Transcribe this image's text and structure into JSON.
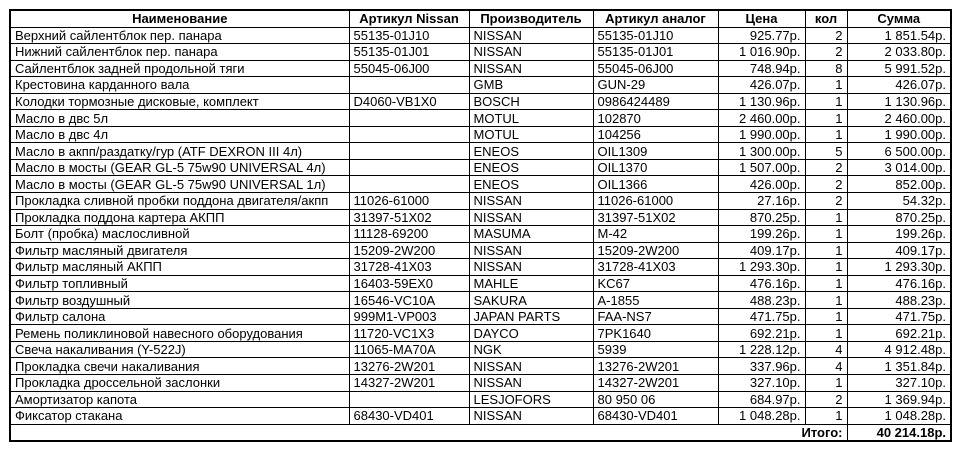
{
  "table": {
    "columns": [
      {
        "label": "Наименование"
      },
      {
        "label": "Артикул Nissan"
      },
      {
        "label": "Производитель"
      },
      {
        "label": "Артикул аналог"
      },
      {
        "label": "Цена"
      },
      {
        "label": "кол"
      },
      {
        "label": "Сумма"
      }
    ],
    "rows": [
      [
        "Верхний сайлентблок пер. панара",
        "55135-01J10",
        "NISSAN",
        "55135-01J10",
        "925.77р.",
        "2",
        "1 851.54р."
      ],
      [
        "Нижний сайлентблок пер. панара",
        "55135-01J01",
        "NISSAN",
        "55135-01J01",
        "1 016.90р.",
        "2",
        "2 033.80р."
      ],
      [
        "Сайлентблок задней продольной тяги",
        "55045-06J00",
        "NISSAN",
        "55045-06J00",
        "748.94р.",
        "8",
        "5 991.52р."
      ],
      [
        "Крестовина карданного вала",
        "",
        "GMB",
        "GUN-29",
        "426.07р.",
        "1",
        "426.07р."
      ],
      [
        "Колодки тормозные дисковые, комплект",
        "D4060-VB1X0",
        "BOSCH",
        "0986424489",
        "1 130.96р.",
        "1",
        "1 130.96р."
      ],
      [
        "Масло в двс 5л",
        "",
        "MOTUL",
        "102870",
        "2 460.00р.",
        "1",
        "2 460.00р."
      ],
      [
        "Масло в двс 4л",
        "",
        "MOTUL",
        "104256",
        "1 990.00р.",
        "1",
        "1 990.00р."
      ],
      [
        "Масло в акпп/раздатку/гур (ATF DEXRON III 4л)",
        "",
        "ENEOS",
        "OIL1309",
        "1 300.00р.",
        "5",
        "6 500.00р."
      ],
      [
        "Масло в мосты (GEAR GL-5 75w90 UNIVERSAL 4л)",
        "",
        "ENEOS",
        "OIL1370",
        "1 507.00р.",
        "2",
        "3 014.00р."
      ],
      [
        "Масло в мосты (GEAR GL-5 75w90 UNIVERSAL 1л)",
        "",
        "ENEOS",
        "OIL1366",
        "426.00р.",
        "2",
        "852.00р."
      ],
      [
        "Прокладка сливной пробки поддона двигателя/акпп",
        "11026-61000",
        "NISSAN",
        "11026-61000",
        "27.16р.",
        "2",
        "54.32р."
      ],
      [
        "Прокладка поддона картера АКПП",
        "31397-51X02",
        "NISSAN",
        "31397-51X02",
        "870.25р.",
        "1",
        "870.25р."
      ],
      [
        "Болт (пробка) маслосливной",
        "11128-69200",
        "MASUMA",
        "M-42",
        "199.26р.",
        "1",
        "199.26р."
      ],
      [
        "Фильтр масляный двигателя",
        "15209-2W200",
        "NISSAN",
        "15209-2W200",
        "409.17р.",
        "1",
        "409.17р."
      ],
      [
        "Фильтр масляный АКПП",
        "31728-41X03",
        "NISSAN",
        "31728-41X03",
        "1 293.30р.",
        "1",
        "1 293.30р."
      ],
      [
        "Фильтр топливный",
        "16403-59EX0",
        "MAHLE",
        "KC67",
        "476.16р.",
        "1",
        "476.16р."
      ],
      [
        "Фильтр воздушный",
        "16546-VC10A",
        "SAKURA",
        "A-1855",
        "488.23р.",
        "1",
        "488.23р."
      ],
      [
        "Фильтр салона",
        "999M1-VP003",
        "JAPAN PARTS",
        "FAA-NS7",
        "471.75р.",
        "1",
        "471.75р."
      ],
      [
        "Ремень поликлиновой навесного оборудования",
        "11720-VC1X3",
        "DAYCO",
        "7PK1640",
        "692.21р.",
        "1",
        "692.21р."
      ],
      [
        "Свеча накаливания (Y-522J)",
        "11065-MA70A",
        "NGK",
        "5939",
        "1 228.12р.",
        "4",
        "4 912.48р."
      ],
      [
        "Прокладка свечи накаливания",
        "13276-2W201",
        "NISSAN",
        "13276-2W201",
        "337.96р.",
        "4",
        "1 351.84р."
      ],
      [
        "Прокладка дроссельной заслонки",
        "14327-2W201",
        "NISSAN",
        "14327-2W201",
        "327.10р.",
        "1",
        "327.10р."
      ],
      [
        "Амортизатор капота",
        "",
        "LESJOFORS",
        "80 950 06",
        "684.97р.",
        "2",
        "1 369.94р."
      ],
      [
        "Фиксатор стакана",
        "68430-VD401",
        "NISSAN",
        "68430-VD401",
        "1 048.28р.",
        "1",
        "1 048.28р."
      ]
    ],
    "total_label": "Итого:",
    "total_value": "40 214.18р.",
    "colors": {
      "border": "#000000",
      "text": "#000000",
      "background": "#ffffff"
    }
  }
}
